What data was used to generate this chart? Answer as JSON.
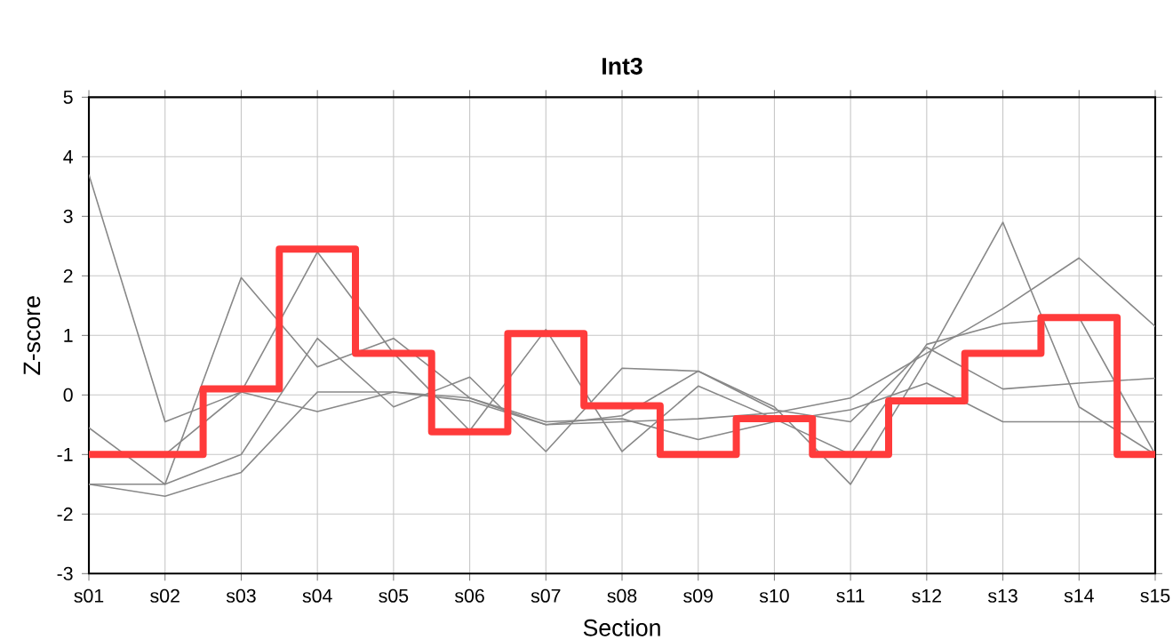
{
  "chart_data": {
    "type": "line",
    "title": "Int3",
    "xlabel": "Section",
    "ylabel": "Z-score",
    "categories": [
      "s01",
      "s02",
      "s03",
      "s04",
      "s05",
      "s06",
      "s07",
      "s08",
      "s09",
      "s10",
      "s11",
      "s12",
      "s13",
      "s14",
      "s15"
    ],
    "ylim": [
      -3,
      5
    ],
    "yticks": [
      -3,
      -2,
      -1,
      0,
      1,
      2,
      3,
      4,
      5
    ],
    "grid": true,
    "series": [
      {
        "color": "#888888",
        "values": [
          3.7,
          -0.45,
          0.05,
          -0.28,
          0.05,
          -0.1,
          -0.5,
          -0.45,
          -0.4,
          -0.3,
          -0.05,
          0.7,
          1.45,
          2.3,
          1.15
        ]
      },
      {
        "color": "#888888",
        "values": [
          -0.55,
          -1.5,
          1.97,
          0.47,
          0.95,
          -0.05,
          -0.5,
          -0.35,
          0.4,
          -0.25,
          -0.45,
          0.8,
          0.1,
          0.2,
          0.28
        ]
      },
      {
        "color": "#888888",
        "values": [
          -1.5,
          -1.5,
          -1.0,
          0.95,
          -0.2,
          0.3,
          -0.95,
          0.45,
          0.4,
          -0.2,
          -1.5,
          0.6,
          2.9,
          -0.2,
          -1.0
        ]
      },
      {
        "color": "#888888",
        "values": [
          -1.5,
          -1.7,
          -1.3,
          0.05,
          0.05,
          -0.05,
          -0.45,
          -0.4,
          -0.75,
          -0.45,
          -0.25,
          0.2,
          -0.45,
          -0.45,
          -0.45
        ]
      },
      {
        "color": "#888888",
        "values": [
          -1.0,
          -1.0,
          0.05,
          2.4,
          0.7,
          -0.6,
          1.1,
          -0.95,
          0.15,
          -0.4,
          -1.0,
          0.85,
          1.2,
          1.3,
          -1.0
        ]
      },
      {
        "type": "step",
        "color": "#ff3b3b",
        "values": [
          -1,
          -1,
          0.1,
          2.45,
          0.7,
          -0.62,
          1.03,
          -0.18,
          -1,
          -0.4,
          -1,
          -0.1,
          0.7,
          1.3,
          -1
        ]
      }
    ]
  }
}
